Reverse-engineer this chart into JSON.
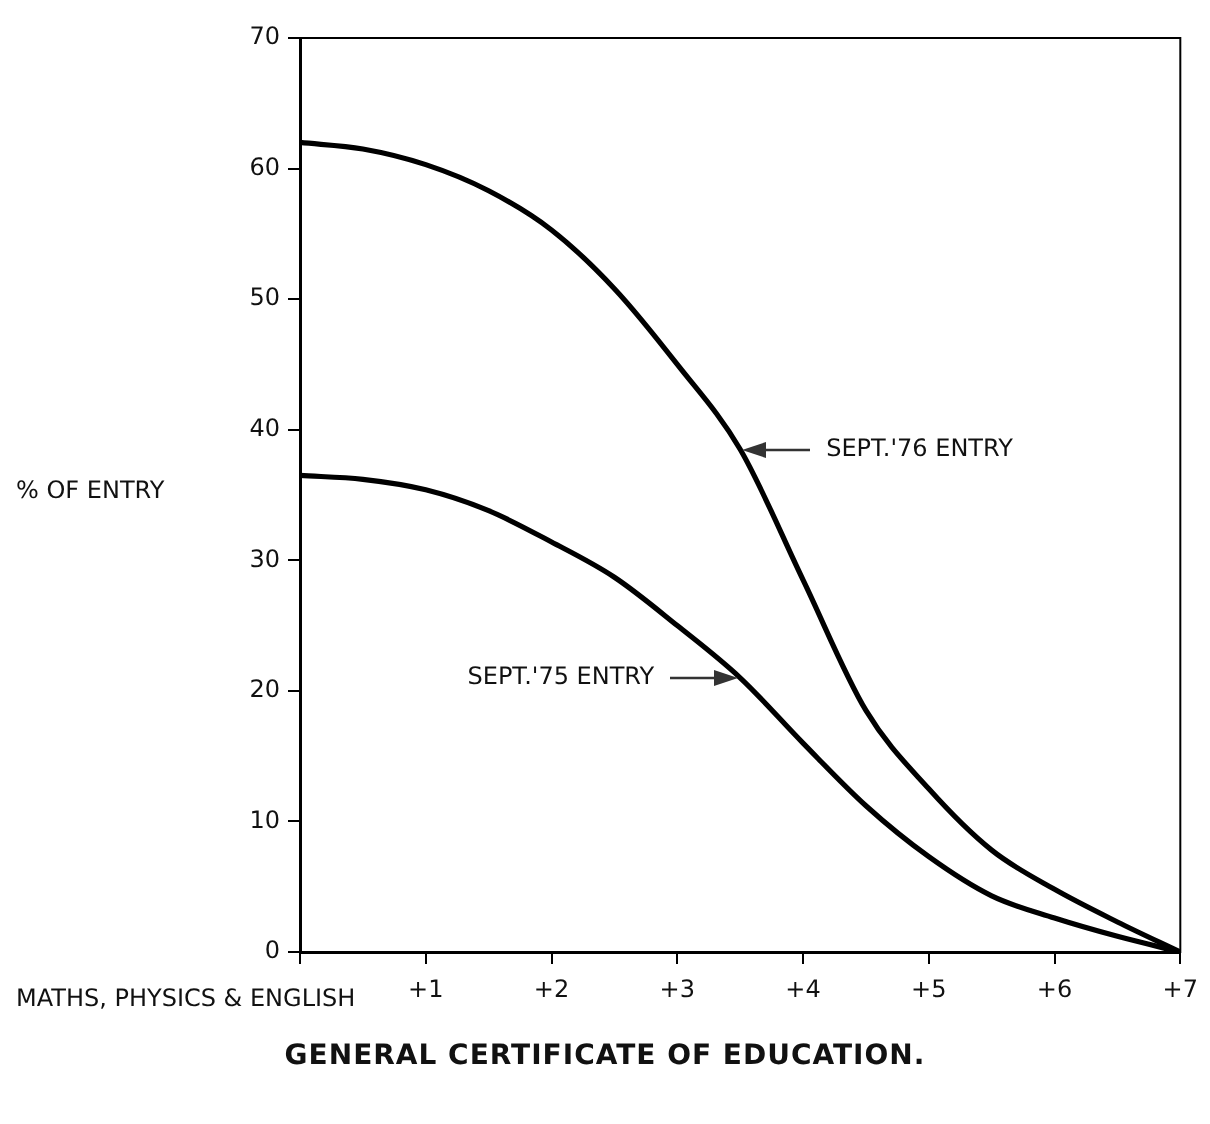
{
  "chart_data": {
    "type": "line",
    "title": "GENERAL CERTIFICATE OF EDUCATION.",
    "xlabel": "MATHS, PHYSICS & ENGLISH",
    "ylabel": "% OF ENTRY",
    "x": [
      0,
      0.5,
      1,
      1.5,
      2,
      2.5,
      3,
      3.5,
      4,
      4.5,
      5,
      5.5,
      6,
      6.5,
      7
    ],
    "series": [
      {
        "name": "SEPT.'76 ENTRY",
        "color": "#000000",
        "values": [
          62,
          61.5,
          60.3,
          58.3,
          55.3,
          50.8,
          45,
          38.5,
          28.5,
          18.5,
          12.5,
          7.8,
          4.8,
          2.3,
          0
        ]
      },
      {
        "name": "SEPT.'75 ENTRY",
        "color": "#000000",
        "values": [
          36.5,
          36.2,
          35.4,
          33.8,
          31.4,
          28.7,
          25,
          21,
          16,
          11.2,
          7.3,
          4.3,
          2.6,
          1.2,
          0
        ]
      }
    ],
    "xlim": [
      0,
      7
    ],
    "xticks": [
      {
        "value": 0,
        "label": null
      },
      {
        "value": 1,
        "label": "+1"
      },
      {
        "value": 2,
        "label": "+2"
      },
      {
        "value": 3,
        "label": "+3"
      },
      {
        "value": 4,
        "label": "+4"
      },
      {
        "value": 5,
        "label": "+5"
      },
      {
        "value": 6,
        "label": "+6"
      },
      {
        "value": 7,
        "label": "+7"
      }
    ],
    "ylim": [
      0,
      70
    ],
    "yticks": [
      0,
      10,
      20,
      30,
      40,
      50,
      60,
      70
    ],
    "grid": false,
    "legend": false,
    "marker": "none",
    "line_style": "solid"
  }
}
